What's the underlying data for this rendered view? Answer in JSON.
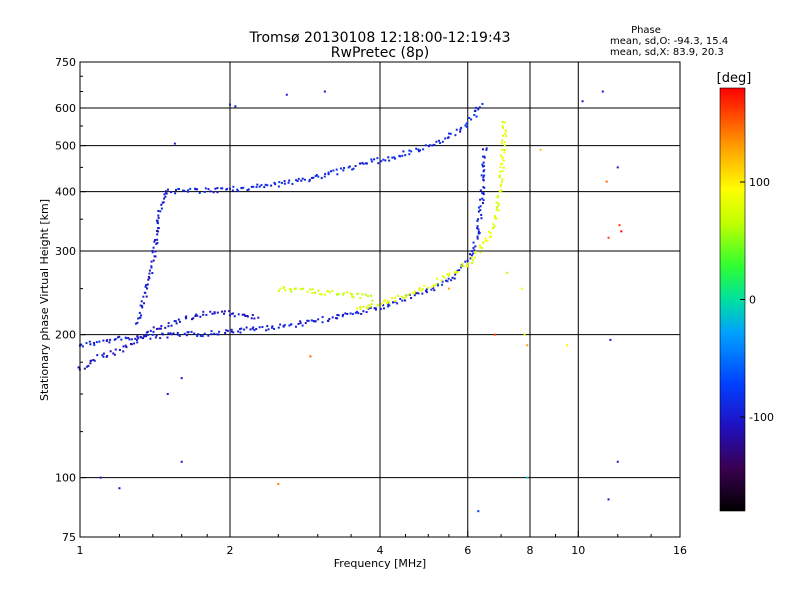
{
  "chart_data": {
    "type": "scatter",
    "title": "Tromsø 20130108 12:18:00-12:19:43",
    "subtitle": "RwPretec (8p)",
    "xlabel": "Frequency [MHz]",
    "ylabel": "Stationary phase Virtual Height [km]",
    "x_scale": "log",
    "y_scale": "log",
    "xlim": [
      1,
      16
    ],
    "ylim": [
      75,
      750
    ],
    "x_ticks": [
      1,
      2,
      4,
      6,
      8,
      10,
      16
    ],
    "y_ticks": [
      75,
      100,
      200,
      300,
      400,
      500,
      600,
      750
    ],
    "x_gridlines": [
      2,
      4,
      6,
      8,
      10
    ],
    "y_gridlines": [
      100,
      200,
      300,
      400,
      500,
      600
    ],
    "grid": true,
    "phase_stats": {
      "heading": "Phase",
      "line_o": "mean, sd,O: -94.3, 15.4",
      "line_x": "mean, sd,X: 83.9, 20.3"
    },
    "colorbar": {
      "label": "[deg]",
      "range": [
        -180,
        180
      ],
      "ticks": [
        {
          "value": 100,
          "label": "100"
        },
        {
          "value": 0,
          "label": "0"
        },
        {
          "value": -100,
          "label": "-100"
        }
      ]
    },
    "traces": [
      {
        "name": "",
        "phase": -95,
        "points": [
          [
            1.0,
            190
          ],
          [
            1.1,
            193
          ],
          [
            1.2,
            196
          ],
          [
            1.4,
            198
          ],
          [
            1.6,
            200
          ],
          [
            1.8,
            201
          ],
          [
            2.0,
            203
          ],
          [
            2.3,
            206
          ],
          [
            2.7,
            210
          ],
          [
            3.0,
            214
          ],
          [
            3.3,
            218
          ],
          [
            3.6,
            222
          ],
          [
            4.0,
            228
          ],
          [
            4.5,
            238
          ],
          [
            5.0,
            248
          ],
          [
            5.4,
            258
          ],
          [
            5.8,
            272
          ],
          [
            6.1,
            295
          ],
          [
            6.3,
            330
          ],
          [
            6.4,
            380
          ],
          [
            6.45,
            440
          ],
          [
            6.5,
            500
          ]
        ]
      },
      {
        "name": "",
        "phase": 80,
        "points": [
          [
            3.6,
            226
          ],
          [
            4.0,
            232
          ],
          [
            4.5,
            242
          ],
          [
            5.0,
            253
          ],
          [
            5.5,
            266
          ],
          [
            6.0,
            282
          ],
          [
            6.4,
            305
          ],
          [
            6.7,
            330
          ],
          [
            6.9,
            370
          ],
          [
            7.0,
            420
          ],
          [
            7.05,
            470
          ],
          [
            7.1,
            520
          ],
          [
            7.1,
            570
          ]
        ]
      },
      {
        "name": "",
        "phase": -90,
        "points": [
          [
            1.5,
            400
          ],
          [
            1.8,
            402
          ],
          [
            2.0,
            404
          ],
          [
            2.3,
            410
          ],
          [
            2.7,
            420
          ],
          [
            3.0,
            430
          ],
          [
            3.4,
            445
          ],
          [
            3.8,
            460
          ],
          [
            4.3,
            475
          ],
          [
            4.8,
            490
          ],
          [
            5.3,
            510
          ],
          [
            5.8,
            540
          ],
          [
            6.2,
            580
          ],
          [
            6.4,
            620
          ]
        ]
      },
      {
        "name": "",
        "phase": 70,
        "points": [
          [
            2.5,
            250
          ],
          [
            2.7,
            248
          ],
          [
            3.0,
            246
          ],
          [
            3.3,
            244
          ],
          [
            3.6,
            242
          ],
          [
            3.9,
            238
          ]
        ]
      },
      {
        "name": "",
        "phase": -100,
        "points": [
          [
            1.3,
            210
          ],
          [
            1.35,
            240
          ],
          [
            1.4,
            280
          ],
          [
            1.42,
            320
          ],
          [
            1.45,
            370
          ],
          [
            1.5,
            410
          ]
        ]
      },
      {
        "name": "",
        "phase": -105,
        "points": [
          [
            1.0,
            170
          ],
          [
            1.05,
            175
          ],
          [
            1.1,
            180
          ],
          [
            1.2,
            185
          ],
          [
            1.3,
            195
          ],
          [
            1.4,
            205
          ],
          [
            1.6,
            215
          ],
          [
            1.8,
            222
          ],
          [
            2.0,
            222
          ],
          [
            2.3,
            218
          ]
        ]
      }
    ],
    "scatter_points": [
      {
        "x": 2.0,
        "y": 610,
        "phase": -100
      },
      {
        "x": 2.05,
        "y": 605,
        "phase": -100
      },
      {
        "x": 2.6,
        "y": 640,
        "phase": -100
      },
      {
        "x": 3.1,
        "y": 650,
        "phase": -100
      },
      {
        "x": 1.55,
        "y": 505,
        "phase": -100
      },
      {
        "x": 1.6,
        "y": 162,
        "phase": -105
      },
      {
        "x": 1.5,
        "y": 150,
        "phase": -105
      },
      {
        "x": 1.2,
        "y": 95,
        "phase": -105
      },
      {
        "x": 1.1,
        "y": 100,
        "phase": -100
      },
      {
        "x": 1.6,
        "y": 108,
        "phase": -100
      },
      {
        "x": 7.2,
        "y": 270,
        "phase": 60
      },
      {
        "x": 7.7,
        "y": 250,
        "phase": 90
      },
      {
        "x": 7.8,
        "y": 200,
        "phase": 80
      },
      {
        "x": 7.9,
        "y": 190,
        "phase": 130
      },
      {
        "x": 9.5,
        "y": 190,
        "phase": 100
      },
      {
        "x": 11.2,
        "y": 650,
        "phase": -100
      },
      {
        "x": 11.4,
        "y": 420,
        "phase": 150
      },
      {
        "x": 11.5,
        "y": 320,
        "phase": 160
      },
      {
        "x": 11.6,
        "y": 195,
        "phase": -110
      },
      {
        "x": 12.0,
        "y": 450,
        "phase": -100
      },
      {
        "x": 12.1,
        "y": 340,
        "phase": 160
      },
      {
        "x": 12.2,
        "y": 330,
        "phase": 180
      },
      {
        "x": 10.2,
        "y": 620,
        "phase": -100
      },
      {
        "x": 8.4,
        "y": 490,
        "phase": 120
      },
      {
        "x": 7.9,
        "y": 100,
        "phase": -10
      },
      {
        "x": 6.3,
        "y": 85,
        "phase": -80
      },
      {
        "x": 11.5,
        "y": 90,
        "phase": -100
      },
      {
        "x": 12.0,
        "y": 108,
        "phase": -100
      },
      {
        "x": 2.5,
        "y": 97,
        "phase": 140
      },
      {
        "x": 2.9,
        "y": 180,
        "phase": 150
      },
      {
        "x": 6.8,
        "y": 200,
        "phase": 160
      },
      {
        "x": 5.5,
        "y": 250,
        "phase": 130
      }
    ]
  }
}
